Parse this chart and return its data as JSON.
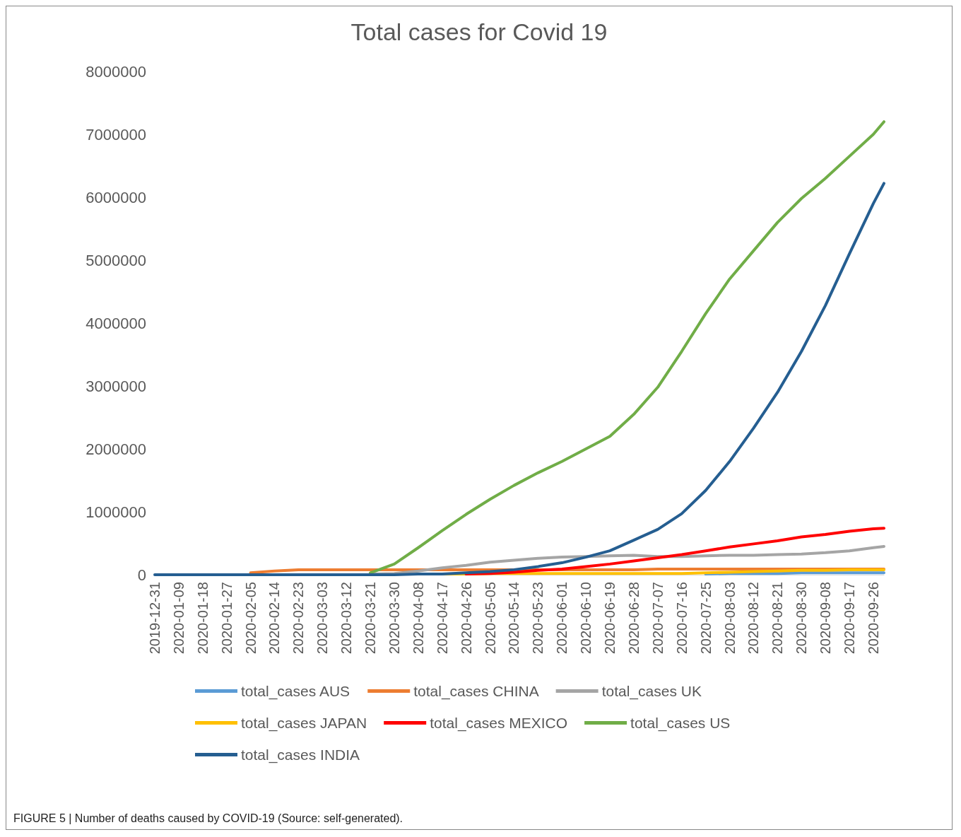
{
  "chart_data": {
    "type": "line",
    "title": "Total cases for Covid 19",
    "annotations": [
      "FIGURE 5 | Number of deaths caused by COVID-19 (Source: self-generated)."
    ],
    "x": [
      "2019-12-31",
      "2020-01-09",
      "2020-01-18",
      "2020-01-27",
      "2020-02-05",
      "2020-02-14",
      "2020-02-23",
      "2020-03-03",
      "2020-03-12",
      "2020-03-21",
      "2020-03-30",
      "2020-04-08",
      "2020-04-17",
      "2020-04-26",
      "2020-05-05",
      "2020-05-14",
      "2020-05-23",
      "2020-06-01",
      "2020-06-10",
      "2020-06-19",
      "2020-06-28",
      "2020-07-07",
      "2020-07-16",
      "2020-07-25",
      "2020-08-03",
      "2020-08-12",
      "2020-08-21",
      "2020-08-30",
      "2020-09-08",
      "2020-09-17",
      "2020-09-26",
      "2020-09-30"
    ],
    "xlim": [
      "2019-12-31",
      "2020-09-30"
    ],
    "xticks": [
      "2019-12-31",
      "2020-01-09",
      "2020-01-18",
      "2020-01-27",
      "2020-02-05",
      "2020-02-14",
      "2020-02-23",
      "2020-03-03",
      "2020-03-12",
      "2020-03-21",
      "2020-03-30",
      "2020-04-08",
      "2020-04-17",
      "2020-04-26",
      "2020-05-05",
      "2020-05-14",
      "2020-05-23",
      "2020-06-01",
      "2020-06-10",
      "2020-06-19",
      "2020-06-28",
      "2020-07-07",
      "2020-07-16",
      "2020-07-25",
      "2020-08-03",
      "2020-08-12",
      "2020-08-21",
      "2020-08-30",
      "2020-09-08",
      "2020-09-17",
      "2020-09-26"
    ],
    "ylim": [
      0,
      8000000
    ],
    "yticks": [
      0,
      1000000,
      2000000,
      3000000,
      4000000,
      5000000,
      6000000,
      7000000,
      8000000
    ],
    "grid": false,
    "legend": "bottom",
    "marker": "none",
    "line_style": "solid",
    "series": [
      {
        "name": "total_cases AUS",
        "color": "#5b9bd5",
        "values": [
          null,
          null,
          null,
          null,
          null,
          null,
          null,
          null,
          null,
          null,
          null,
          null,
          null,
          null,
          null,
          null,
          null,
          null,
          null,
          null,
          null,
          null,
          null,
          10000,
          20000,
          20000,
          20000,
          30000,
          30000,
          30000,
          30000,
          30000
        ]
      },
      {
        "name": "total_cases CHINA",
        "color": "#ed7d31",
        "values": [
          null,
          null,
          null,
          null,
          30000,
          60000,
          80000,
          80000,
          80000,
          80000,
          80000,
          80000,
          80000,
          80000,
          80000,
          80000,
          80000,
          80000,
          80000,
          80000,
          80000,
          90000,
          90000,
          90000,
          90000,
          90000,
          90000,
          90000,
          90000,
          90000,
          90000,
          90000
        ]
      },
      {
        "name": "total_cases UK",
        "color": "#a5a5a5",
        "values": [
          null,
          null,
          null,
          null,
          null,
          null,
          null,
          null,
          null,
          10000,
          20000,
          60000,
          110000,
          150000,
          200000,
          230000,
          260000,
          280000,
          290000,
          300000,
          310000,
          290000,
          290000,
          300000,
          310000,
          310000,
          320000,
          330000,
          350000,
          380000,
          430000,
          450000
        ]
      },
      {
        "name": "total_cases JAPAN",
        "color": "#ffc000",
        "values": [
          null,
          null,
          null,
          null,
          null,
          null,
          null,
          null,
          null,
          null,
          null,
          10000,
          10000,
          10000,
          20000,
          20000,
          20000,
          20000,
          20000,
          20000,
          20000,
          20000,
          20000,
          30000,
          40000,
          50000,
          60000,
          70000,
          70000,
          80000,
          80000,
          80000
        ]
      },
      {
        "name": "total_cases MEXICO",
        "color": "#ff0000",
        "values": [
          null,
          null,
          null,
          null,
          null,
          null,
          null,
          null,
          null,
          null,
          null,
          null,
          null,
          10000,
          20000,
          40000,
          70000,
          90000,
          130000,
          170000,
          220000,
          270000,
          320000,
          380000,
          440000,
          490000,
          540000,
          600000,
          640000,
          690000,
          730000,
          740000
        ]
      },
      {
        "name": "total_cases US",
        "color": "#70ad47",
        "values": [
          null,
          null,
          null,
          null,
          null,
          null,
          null,
          null,
          null,
          30000,
          170000,
          430000,
          700000,
          960000,
          1200000,
          1420000,
          1620000,
          1800000,
          2000000,
          2200000,
          2550000,
          2980000,
          3550000,
          4150000,
          4700000,
          5150000,
          5600000,
          5980000,
          6300000,
          6650000,
          7000000,
          7200000
        ]
      },
      {
        "name": "total_cases INDIA",
        "color": "#255e91",
        "values": [
          0,
          0,
          0,
          0,
          0,
          0,
          0,
          0,
          0,
          0,
          0,
          10000,
          10000,
          30000,
          50000,
          80000,
          130000,
          190000,
          280000,
          380000,
          550000,
          720000,
          970000,
          1340000,
          1800000,
          2330000,
          2900000,
          3550000,
          4280000,
          5100000,
          5900000,
          6220000
        ]
      }
    ]
  }
}
